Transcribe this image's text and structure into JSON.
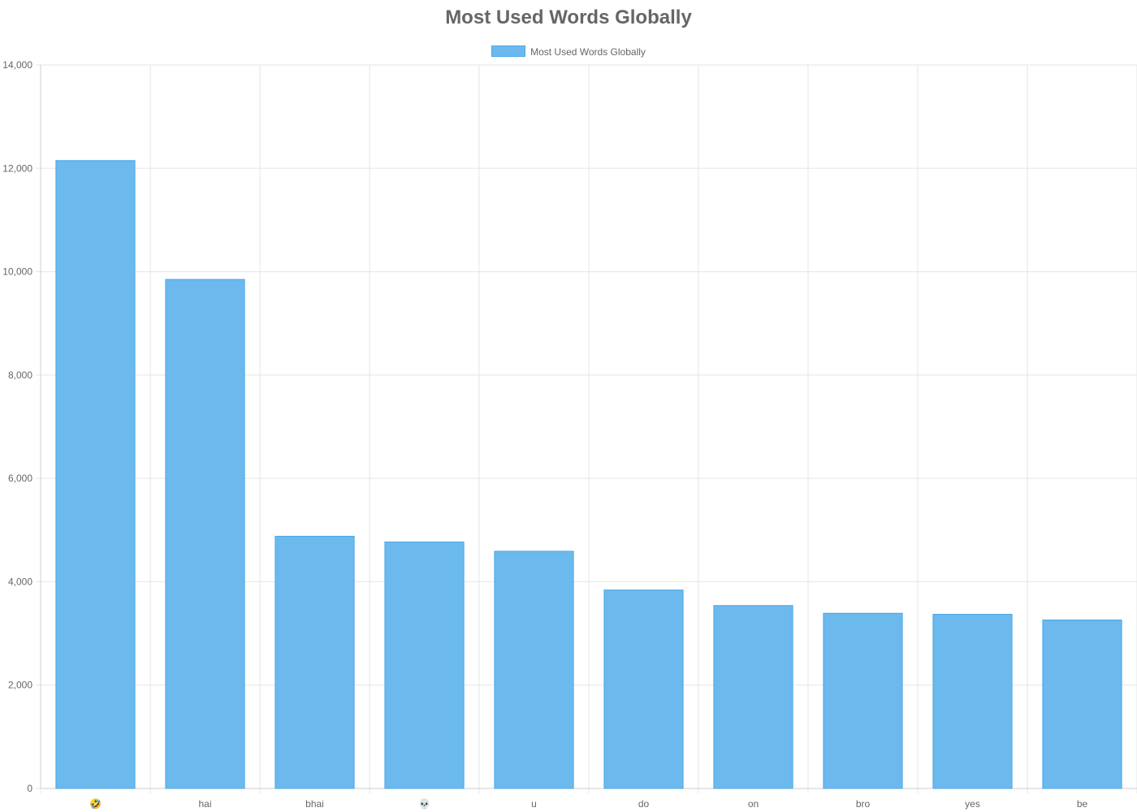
{
  "chart_data": {
    "type": "bar",
    "title": "Most Used Words Globally",
    "categories": [
      "🤣",
      "hai",
      "bhai",
      "💀",
      "u",
      "do",
      "on",
      "bro",
      "yes",
      "be"
    ],
    "series": [
      {
        "name": "Most Used Words Globally",
        "values": [
          12150,
          9850,
          4880,
          4770,
          4590,
          3840,
          3540,
          3390,
          3370,
          3260
        ]
      }
    ],
    "ylim": [
      0,
      14000
    ],
    "yticks": [
      0,
      2000,
      4000,
      6000,
      8000,
      10000,
      12000,
      14000
    ],
    "ytick_labels": [
      "0",
      "2,000",
      "4,000",
      "6,000",
      "8,000",
      "10,000",
      "12,000",
      "14,000"
    ],
    "xlabel": "",
    "ylabel": "",
    "grid": true,
    "legend_position": "top",
    "bar_color": "#6cb9ed",
    "bar_border_color": "#4aa8e8",
    "grid_color": "#e5e5e5",
    "text_color": "#666666"
  }
}
